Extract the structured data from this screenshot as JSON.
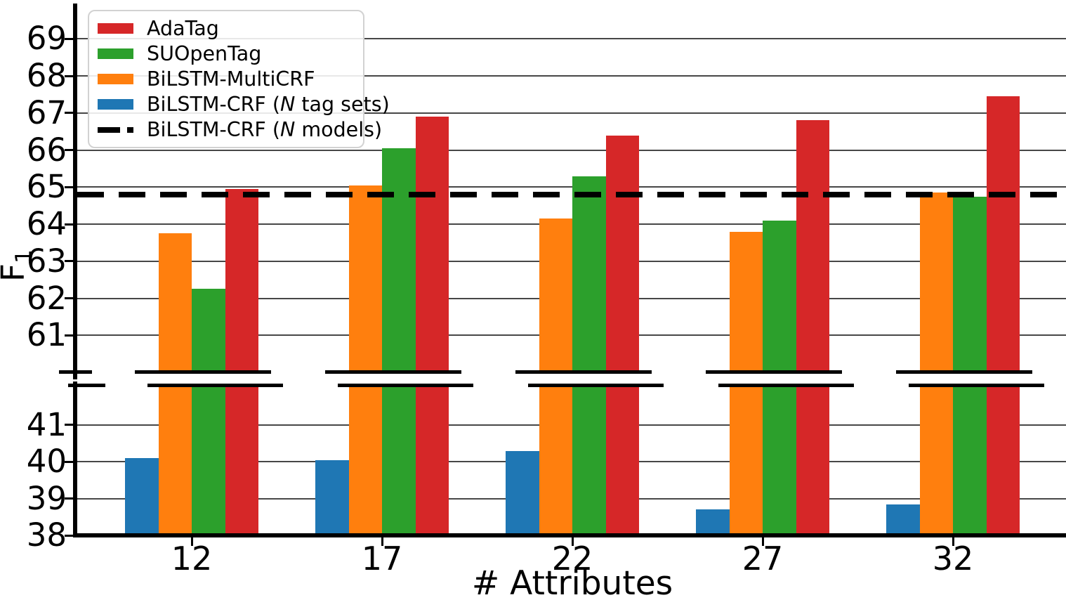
{
  "chart_data": {
    "type": "bar",
    "xlabel": "# Attributes",
    "ylabel": {
      "main": "F",
      "sub": "1"
    },
    "categories": [
      "12",
      "17",
      "22",
      "27",
      "32"
    ],
    "series": [
      {
        "name": "BiLSTM-CRF (N tag sets)",
        "color": "#1f77b4",
        "values": [
          40.1,
          40.05,
          40.3,
          38.7,
          38.85
        ]
      },
      {
        "name": "BiLSTM-MultiCRF",
        "color": "#ff7f0e",
        "values": [
          63.75,
          65.05,
          64.15,
          63.8,
          64.85
        ]
      },
      {
        "name": "SUOpenTag",
        "color": "#2ca02c",
        "values": [
          62.25,
          66.05,
          65.3,
          64.1,
          64.75
        ]
      },
      {
        "name": "AdaTag",
        "color": "#d62728",
        "values": [
          64.95,
          66.9,
          66.4,
          66.8,
          67.45
        ]
      }
    ],
    "baseline": {
      "name": "BiLSTM-CRF (N models)",
      "value": 64.8,
      "color": "#000000",
      "style": "dashed"
    },
    "axis_break": true,
    "panels": {
      "top": {
        "ylim": [
          60.0,
          69.9
        ],
        "ticks": [
          61,
          62,
          63,
          64,
          65,
          66,
          67,
          68,
          69
        ]
      },
      "bottom": {
        "ylim": [
          38.0,
          42.07
        ],
        "ticks": [
          38,
          39,
          40,
          41
        ]
      }
    },
    "grid": true,
    "legend_position": "upper left"
  },
  "legend": {
    "items": [
      {
        "swatch": "rect",
        "color": "#d62728",
        "pre": "AdaTag",
        "n": "",
        "post": ""
      },
      {
        "swatch": "rect",
        "color": "#2ca02c",
        "pre": "SUOpenTag",
        "n": "",
        "post": ""
      },
      {
        "swatch": "rect",
        "color": "#ff7f0e",
        "pre": "BiLSTM-MultiCRF",
        "n": "",
        "post": ""
      },
      {
        "swatch": "rect",
        "color": "#1f77b4",
        "pre": "BiLSTM-CRF (",
        "n": "N",
        "post": " tag sets)"
      },
      {
        "swatch": "dash",
        "color": "#000000",
        "pre": "BiLSTM-CRF (",
        "n": "N",
        "post": " models)"
      }
    ]
  }
}
